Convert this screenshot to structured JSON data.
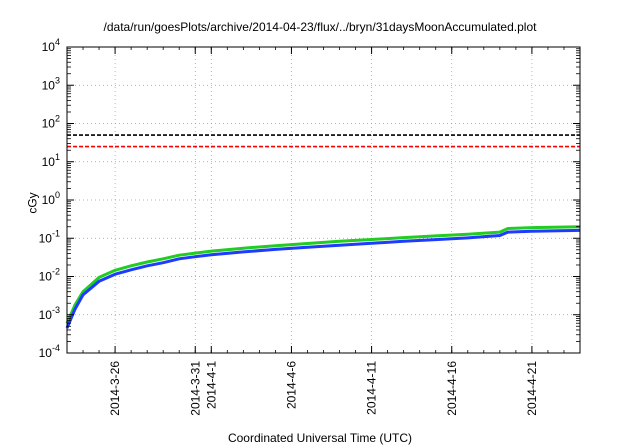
{
  "chart_data": {
    "type": "line",
    "title": "/data/run/goesPlots/archive/2014-04-23/flux/../bryn/31daysMoonAccumulated.plot",
    "xlabel": "Coordinated Universal Time (UTC)",
    "ylabel": "cGy",
    "y_scale": "log",
    "ylim": [
      0.0001,
      10000
    ],
    "xlim": [
      "2014-03-23",
      "2014-04-24"
    ],
    "y_ticks": [
      {
        "base": "10",
        "exp": "-4"
      },
      {
        "base": "10",
        "exp": "-3"
      },
      {
        "base": "10",
        "exp": "-2"
      },
      {
        "base": "10",
        "exp": "-1"
      },
      {
        "base": "10",
        "exp": "0"
      },
      {
        "base": "10",
        "exp": "1"
      },
      {
        "base": "10",
        "exp": "2"
      },
      {
        "base": "10",
        "exp": "3"
      },
      {
        "base": "10",
        "exp": "4"
      }
    ],
    "x_ticks": [
      "2014-3-26",
      "2014-3-31",
      "2014-4-1",
      "2014-4-6",
      "2014-4-11",
      "2014-4-16",
      "2014-4-21"
    ],
    "grid": true,
    "series": [
      {
        "color": "#22cc22",
        "x": [
          "2014-03-23",
          "2014-03-23T12:00",
          "2014-03-24",
          "2014-03-25",
          "2014-03-26",
          "2014-03-27",
          "2014-03-28",
          "2014-03-29",
          "2014-03-30",
          "2014-03-31",
          "2014-04-01",
          "2014-04-03",
          "2014-04-05",
          "2014-04-07",
          "2014-04-09",
          "2014-04-11",
          "2014-04-13",
          "2014-04-15",
          "2014-04-17",
          "2014-04-19",
          "2014-04-19T12:00",
          "2014-04-21",
          "2014-04-24"
        ],
        "values": [
          0.0006,
          0.0018,
          0.004,
          0.0095,
          0.0145,
          0.019,
          0.024,
          0.029,
          0.036,
          0.041,
          0.046,
          0.055,
          0.064,
          0.073,
          0.083,
          0.093,
          0.104,
          0.115,
          0.127,
          0.145,
          0.18,
          0.19,
          0.2
        ]
      },
      {
        "color": "#1e3cff",
        "x": [
          "2014-03-23",
          "2014-03-23T12:00",
          "2014-03-24",
          "2014-03-25",
          "2014-03-26",
          "2014-03-27",
          "2014-03-28",
          "2014-03-29",
          "2014-03-30",
          "2014-03-31",
          "2014-04-01",
          "2014-04-03",
          "2014-04-05",
          "2014-04-07",
          "2014-04-09",
          "2014-04-11",
          "2014-04-13",
          "2014-04-15",
          "2014-04-17",
          "2014-04-19",
          "2014-04-19T12:00",
          "2014-04-21",
          "2014-04-24"
        ],
        "values": [
          0.00045,
          0.0014,
          0.0033,
          0.0075,
          0.0115,
          0.015,
          0.019,
          0.023,
          0.029,
          0.033,
          0.037,
          0.044,
          0.051,
          0.058,
          0.066,
          0.074,
          0.083,
          0.092,
          0.102,
          0.118,
          0.145,
          0.152,
          0.16
        ]
      },
      {
        "color": "#000000",
        "style": "dashed",
        "x": [
          "2014-03-23",
          "2014-04-24"
        ],
        "values": [
          50,
          50
        ]
      },
      {
        "color": "#ff0000",
        "style": "dashed",
        "x": [
          "2014-03-23",
          "2014-04-24"
        ],
        "values": [
          25,
          25
        ]
      }
    ]
  }
}
